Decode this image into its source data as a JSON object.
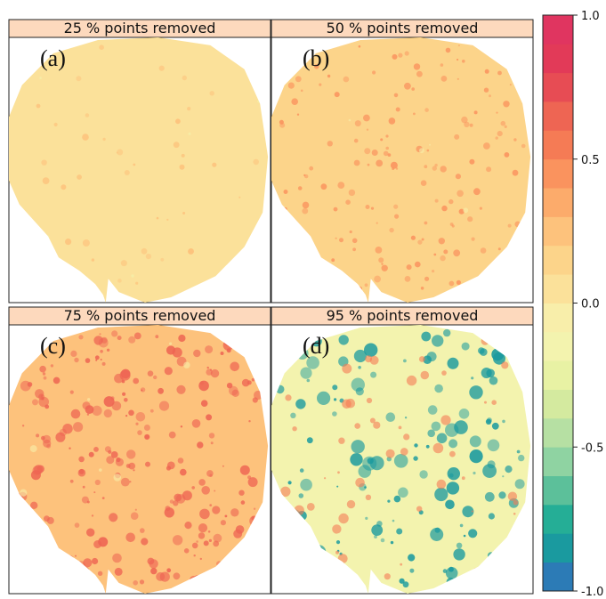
{
  "chart_data": {
    "type": "heatmap",
    "panels": [
      {
        "letter": "(a)",
        "title": "25 % points removed",
        "dominant_value": 0.05,
        "spot_value": 0.25,
        "low_spot_value": -0.15,
        "spot_count": 40,
        "low_spot_count": 6
      },
      {
        "letter": "(b)",
        "title": "50 % points removed",
        "dominant_value": 0.1,
        "spot_value": 0.45,
        "low_spot_value": -0.1,
        "spot_count": 170,
        "low_spot_count": 5
      },
      {
        "letter": "(c)",
        "title": "75 % points removed",
        "dominant_value": 0.2,
        "spot_value": 0.6,
        "low_spot_value": -0.05,
        "spot_count": 260,
        "low_spot_count": 8
      },
      {
        "letter": "(d)",
        "title": "95 % points removed",
        "dominant_value": -0.2,
        "spot_value": -0.8,
        "low_spot_value": 0.5,
        "spot_count": 150,
        "low_spot_count": 60
      }
    ],
    "colorbar": {
      "ticks": [
        1.0,
        0.5,
        0.0,
        -0.5,
        -1.0
      ],
      "tick_labels": [
        "1.0",
        "0.5",
        "0.0",
        "-0.5",
        "-1.0"
      ],
      "range": [
        -1.0,
        1.0
      ],
      "colors": [
        "#2c7bb6",
        "#1a9a9f",
        "#25ae96",
        "#5cc09a",
        "#8fd3a2",
        "#b6e0a3",
        "#d4ea9f",
        "#e8f2a4",
        "#f3f3ae",
        "#f8eeaa",
        "#fbe19a",
        "#fcd48a",
        "#fdc27c",
        "#fcab6b",
        "#fa935e",
        "#f57b55",
        "#ee6553",
        "#e74c54",
        "#e23a58",
        "#e03560"
      ]
    },
    "xlabel": "",
    "ylabel": ""
  }
}
